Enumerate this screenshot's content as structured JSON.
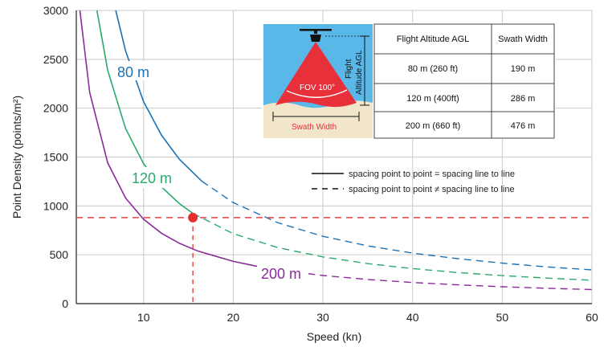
{
  "chart_data": {
    "type": "line",
    "xlabel": "Speed (kn)",
    "ylabel": "Point Density (points/m²)",
    "xlim": [
      2.5,
      60
    ],
    "ylim": [
      0,
      3000
    ],
    "xticks": [
      "10",
      "20",
      "30",
      "40",
      "50",
      "60"
    ],
    "yticks": [
      "0",
      "500",
      "1000",
      "1500",
      "2000",
      "2500",
      "3000"
    ],
    "grid": true,
    "series": [
      {
        "name": "80 m",
        "color": "#1a73b8",
        "solid_x": [
          6.9,
          8,
          10,
          12,
          14,
          16.5
        ],
        "solid_y": [
          3000,
          2585,
          2068,
          1723,
          1477,
          1253
        ],
        "dashed_x": [
          16.5,
          20,
          25,
          30,
          35,
          40,
          45,
          50,
          55,
          60
        ],
        "dashed_y": [
          1253,
          1034,
          827,
          689,
          591,
          517,
          460,
          414,
          376,
          345
        ]
      },
      {
        "name": "120 m",
        "color": "#2aaa6a",
        "solid_x": [
          4.8,
          6,
          8,
          10,
          12,
          14,
          15.5
        ],
        "solid_y": [
          3000,
          2388,
          1791,
          1433,
          1194,
          1023,
          924
        ],
        "dashed_x": [
          15.5,
          20,
          25,
          30,
          35,
          40,
          45,
          50,
          55,
          60
        ],
        "dashed_y": [
          924,
          716,
          573,
          478,
          409,
          358,
          318,
          287,
          261,
          239
        ]
      },
      {
        "name": "200 m",
        "color": "#8b2a9a",
        "solid_x": [
          2.9,
          4,
          6,
          8,
          10,
          12,
          14,
          16,
          20,
          23
        ],
        "solid_y": [
          3000,
          2160,
          1440,
          1080,
          864,
          720,
          617,
          540,
          432,
          376
        ],
        "dashed_x": [
          23,
          25,
          30,
          35,
          40,
          45,
          50,
          55,
          60
        ],
        "dashed_y": [
          376,
          346,
          288,
          247,
          216,
          192,
          173,
          157,
          144
        ]
      }
    ],
    "reference": {
      "x": 15.5,
      "y": 880,
      "color": "#e63030"
    }
  },
  "labels": {
    "s80": "80 m",
    "s120": "120 m",
    "s200": "200 m"
  },
  "legend": {
    "solid": "spacing point to point = spacing line to line",
    "dashed": "spacing point to point ≠ spacing line to line"
  },
  "illustration": {
    "fov": "FOV 100°",
    "swath": "Swath Width",
    "altitude_line1": "Flight",
    "altitude_line2": "Altitude AGL"
  },
  "table": {
    "headers": [
      "Flight Altitude AGL",
      "Swath Width"
    ],
    "rows": [
      [
        "80 m (260 ft)",
        "190 m"
      ],
      [
        "120 m (400ft)",
        "286 m"
      ],
      [
        "200 m (660 ft)",
        "476 m"
      ]
    ]
  }
}
